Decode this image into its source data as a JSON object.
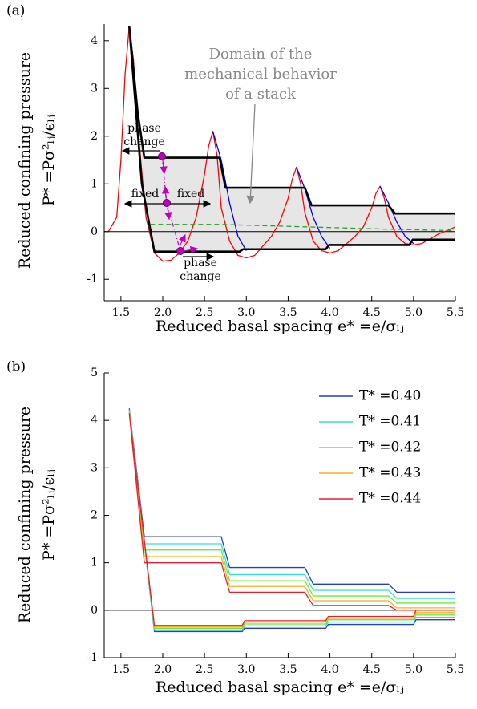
{
  "chart_data": [
    {
      "type": "line",
      "panel_label": "(a)",
      "xlabel": "Reduced basal spacing e* =e/σₗⱼ",
      "ylabel": [
        "Reduced confining pressure",
        "P* =Pσ²ₗⱼ/ϵₗⱼ"
      ],
      "xlim": [
        1.3,
        5.5
      ],
      "ylim": [
        -1.45,
        4.35
      ],
      "xticks": [
        1.5,
        {
          "value": 2,
          "label": "2.0"
        },
        2.5,
        {
          "value": 3,
          "label": "3.0"
        },
        3.5,
        {
          "value": 4,
          "label": "4.0"
        },
        4.5,
        {
          "value": 5,
          "label": "5.0"
        },
        5.5
      ],
      "yticks": [
        -1,
        0,
        1,
        2,
        3,
        4
      ],
      "zero_line": true,
      "series": [
        {
          "color": "#ff0000",
          "x": [
            1.35,
            1.45,
            1.5,
            1.55,
            1.6,
            1.65,
            1.7,
            1.8,
            1.9,
            2.0,
            2.1,
            2.2,
            2.3,
            2.4,
            2.5,
            2.55,
            2.6,
            2.65,
            2.7,
            2.8,
            2.9,
            3.0,
            3.1,
            3.2,
            3.3,
            3.4,
            3.5,
            3.55,
            3.6,
            3.65,
            3.7,
            3.8,
            3.9,
            4.0,
            4.1,
            4.2,
            4.3,
            4.4,
            4.5,
            4.55,
            4.6,
            4.65,
            4.7,
            4.8,
            4.9,
            5.0,
            5.1,
            5.2,
            5.3,
            5.4,
            5.5
          ],
          "values": [
            0,
            0.3,
            1.5,
            3.3,
            4.3,
            3.6,
            2.2,
            0.3,
            -0.45,
            -0.62,
            -0.6,
            -0.45,
            -0.2,
            0.3,
            1.2,
            1.8,
            2.1,
            1.6,
            0.5,
            -0.2,
            -0.5,
            -0.55,
            -0.5,
            -0.3,
            -0.1,
            0.2,
            0.7,
            1.1,
            1.35,
            1.0,
            0.4,
            -0.2,
            -0.4,
            -0.45,
            -0.4,
            -0.25,
            -0.1,
            0.1,
            0.5,
            0.8,
            0.95,
            0.7,
            0.3,
            -0.1,
            -0.25,
            -0.28,
            -0.25,
            -0.15,
            -0.05,
            0.02,
            0.1
          ]
        },
        {
          "color": "#0000ff",
          "x": [
            2.6,
            2.7,
            2.8,
            2.9,
            3.0,
            3.0,
            3.6,
            3.7,
            3.8,
            3.9,
            4.0,
            4.0,
            4.6,
            4.7,
            4.8,
            4.9,
            5.0
          ],
          "values": [
            2.1,
            1.5,
            0.6,
            -0.1,
            -0.4,
            null,
            1.35,
            0.9,
            0.3,
            -0.1,
            -0.35,
            null,
            0.95,
            0.6,
            0.2,
            -0.1,
            -0.25
          ]
        },
        {
          "color": "#000000",
          "fill": "#e6e6e6",
          "width": 2.6,
          "x": [
            1.6,
            1.7,
            1.78,
            2.68,
            2.75,
            3.7,
            3.78,
            4.7,
            4.78,
            5.5,
            5.5,
            1.6,
            1.75,
            1.9,
            2.92,
            2.96,
            3.95,
            3.99,
            4.95,
            4.99,
            5.5
          ],
          "values": [
            4.3,
            2.5,
            1.55,
            1.55,
            0.92,
            0.92,
            0.55,
            0.55,
            0.38,
            0.38,
            null,
            4.3,
            1.0,
            -0.42,
            -0.42,
            -0.37,
            -0.37,
            -0.28,
            -0.28,
            -0.17,
            -0.17
          ]
        },
        {
          "color": "#2ca02c",
          "dash": true,
          "x": [
            1.85,
            2.7,
            3.7,
            4.7,
            5.5
          ],
          "values": [
            0.15,
            0.15,
            0.1,
            0.05,
            0.02
          ]
        }
      ],
      "annotations": [
        [
          "Domain of the",
          "mechanical behavior",
          "of a stack"
        ],
        [
          "phase",
          "change"
        ],
        [
          "fixed"
        ],
        [
          "fixed"
        ],
        [
          "phase",
          "change"
        ]
      ]
    },
    {
      "type": "line",
      "panel_label": "(b)",
      "xlabel": "Reduced basal spacing e* =e/σₗⱼ",
      "ylabel": [
        "Reduced confining pressure",
        "P* =Pσ²ₗⱼ/ϵₗⱼ"
      ],
      "xlim": [
        1.3,
        5.5
      ],
      "ylim": [
        -1,
        5
      ],
      "xticks": [
        1.5,
        {
          "value": 2,
          "label": "2.0"
        },
        2.5,
        {
          "value": 3,
          "label": "3.0"
        },
        3.5,
        {
          "value": 4,
          "label": "4.0"
        },
        4.5,
        {
          "value": 5,
          "label": "5.0"
        },
        5.5
      ],
      "yticks": [
        -1,
        0,
        1,
        2,
        3,
        4,
        5
      ],
      "zero_line": true,
      "legend": "upper right",
      "x": [
        1.6,
        1.78,
        2.7,
        2.8,
        3.7,
        3.8,
        4.7,
        4.8,
        5.5,
        5.5,
        1.6,
        1.9,
        2.95,
        2.98,
        3.95,
        3.98,
        5.0,
        5.03,
        5.5
      ],
      "series": [
        {
          "name": "T* =0.40",
          "color": "#1f3fd0",
          "values": [
            4.25,
            1.55,
            1.55,
            0.9,
            0.9,
            0.55,
            0.55,
            0.38,
            0.38,
            null,
            4.25,
            -0.45,
            -0.45,
            -0.38,
            -0.38,
            -0.3,
            -0.3,
            -0.2,
            -0.2
          ]
        },
        {
          "name": "T* =0.41",
          "color": "#33e0d0",
          "values": [
            4.22,
            1.4,
            1.4,
            0.75,
            0.75,
            0.42,
            0.42,
            0.25,
            0.25,
            null,
            4.22,
            -0.42,
            -0.42,
            -0.33,
            -0.33,
            -0.25,
            -0.25,
            -0.15,
            -0.15
          ]
        },
        {
          "name": "T* =0.42",
          "color": "#66ee33",
          "values": [
            4.2,
            1.27,
            1.27,
            0.62,
            0.62,
            0.3,
            0.3,
            0.15,
            0.15,
            null,
            4.2,
            -0.38,
            -0.38,
            -0.29,
            -0.29,
            -0.2,
            -0.2,
            -0.1,
            -0.1
          ]
        },
        {
          "name": "T* =0.43",
          "color": "#ffaa22",
          "values": [
            4.18,
            1.13,
            1.13,
            0.5,
            0.5,
            0.2,
            0.2,
            0.05,
            0.05,
            null,
            4.18,
            -0.35,
            -0.35,
            -0.25,
            -0.25,
            -0.17,
            -0.17,
            -0.05,
            -0.05
          ]
        },
        {
          "name": "T* =0.44",
          "color": "#e8202a",
          "values": [
            4.15,
            1.0,
            1.0,
            0.38,
            0.38,
            0.1,
            0.1,
            0.0,
            0.0,
            null,
            4.15,
            -0.32,
            -0.32,
            -0.22,
            -0.22,
            -0.13,
            -0.13,
            0.0,
            0.0
          ]
        }
      ]
    }
  ]
}
